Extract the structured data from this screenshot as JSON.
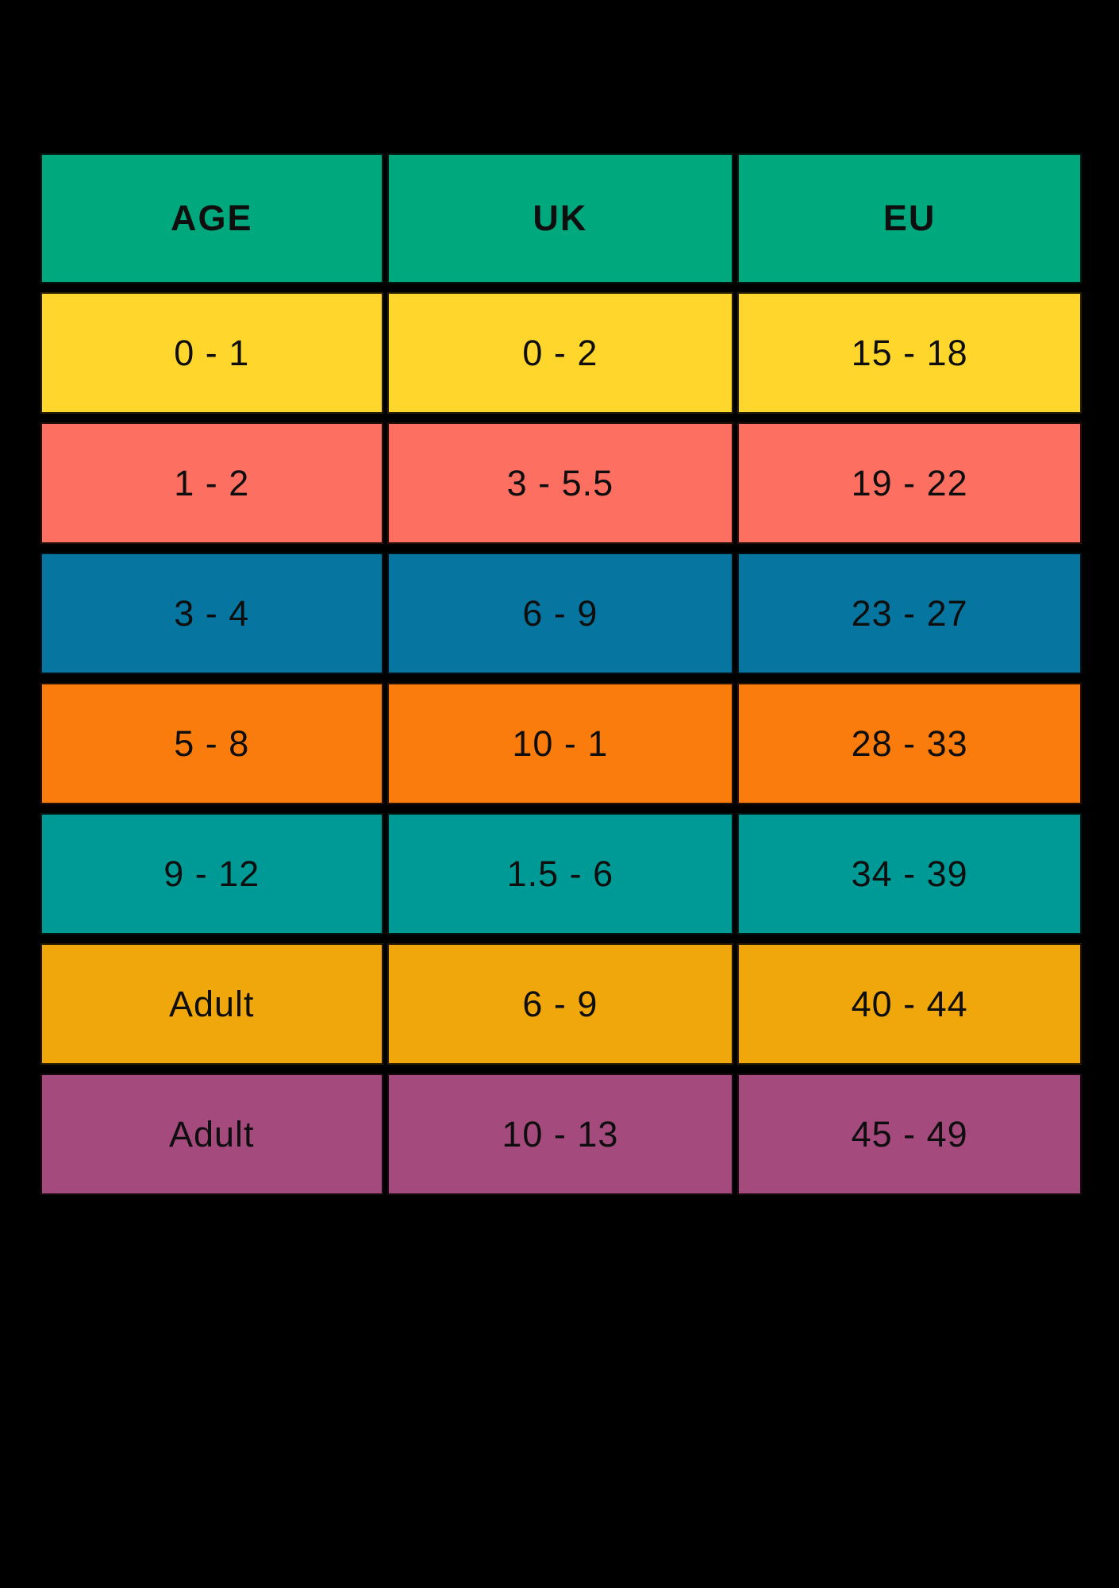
{
  "chart_data": {
    "type": "table",
    "title": "",
    "columns": [
      "AGE",
      "UK",
      "EU"
    ],
    "rows": [
      [
        "0 - 1",
        "0 - 2",
        "15 - 18"
      ],
      [
        "1 - 2",
        "3 - 5.5",
        "19 - 22"
      ],
      [
        "3 - 4",
        "6 - 9",
        "23 - 27"
      ],
      [
        "5 - 8",
        "10 - 1",
        "28 - 33"
      ],
      [
        "9 - 12",
        "1.5 - 6",
        "34 - 39"
      ],
      [
        "Adult",
        "6 - 9",
        "40 - 44"
      ],
      [
        "Adult",
        "10 - 13",
        "45 - 49"
      ]
    ],
    "layout_hints": {
      "grid": "black gaps between colored cells",
      "legend": "none",
      "each_row_single_color": true
    }
  },
  "style": {
    "background": "#000000",
    "header_color": "#00A87E",
    "row_colors": [
      "#FFD62B",
      "#FC6F61",
      "#0676A0",
      "#F97C0C",
      "#009A96",
      "#F0A70B",
      "#A44A7C"
    ],
    "text_color": "#0E0E0E",
    "grid_color": "#000000"
  }
}
